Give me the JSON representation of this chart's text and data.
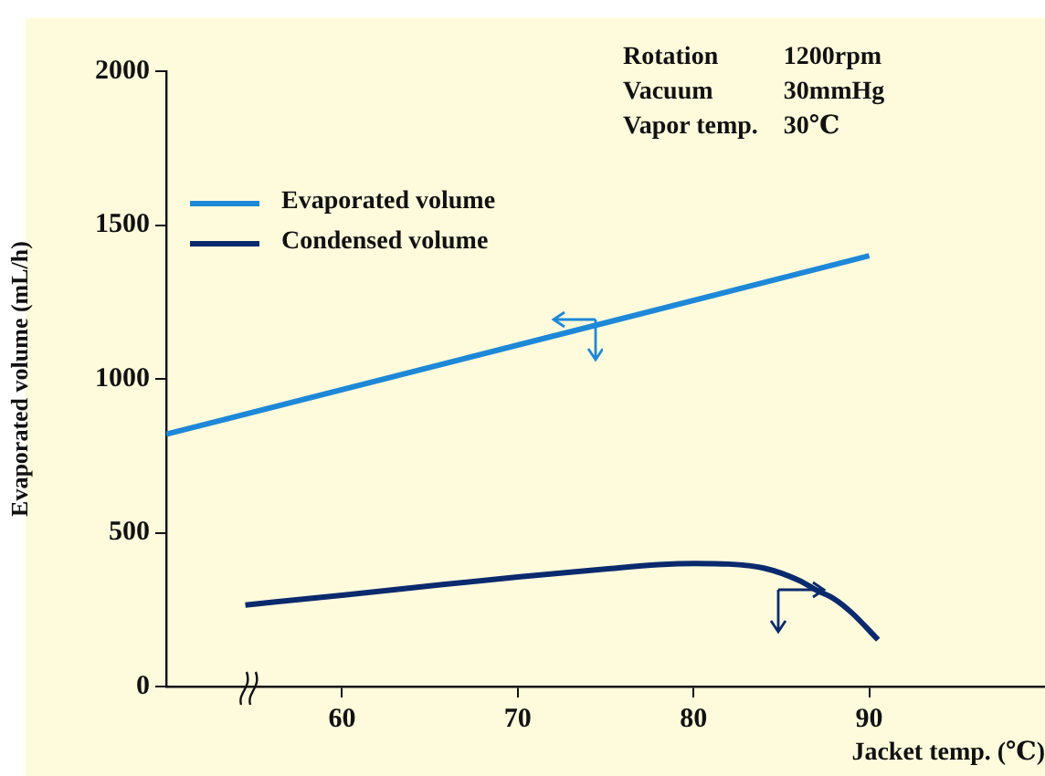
{
  "chart_data": {
    "type": "line",
    "xlabel": "Jacket temp. (℃)",
    "ylabel": "Evaporated volume (mL/h)",
    "xlim": [
      50,
      100
    ],
    "xticks": [
      60,
      70,
      80,
      90
    ],
    "ylim": [
      0,
      2000
    ],
    "yticks": [
      0,
      500,
      1000,
      1500,
      2000
    ],
    "series": [
      {
        "name": "Evaporated volume",
        "color": "#1e88d8",
        "x": [
          50,
          90
        ],
        "values": [
          820,
          1400
        ]
      },
      {
        "name": "Condensed volume",
        "color": "#0a2a6e",
        "x": [
          54.5,
          60,
          65,
          70,
          75,
          78,
          80,
          82,
          84,
          86,
          87,
          88,
          89,
          90.5
        ],
        "values": [
          265,
          297,
          327,
          356,
          382,
          396,
          400,
          398,
          385,
          345,
          313,
          285,
          240,
          152
        ]
      }
    ],
    "annotations": [
      "Rotation",
      "1200rpm",
      "Vacuum",
      "30mmHg",
      "Vapor temp.",
      "30℃"
    ],
    "legend": "top left",
    "grid": false,
    "marker": "none",
    "line_style": "solid"
  }
}
